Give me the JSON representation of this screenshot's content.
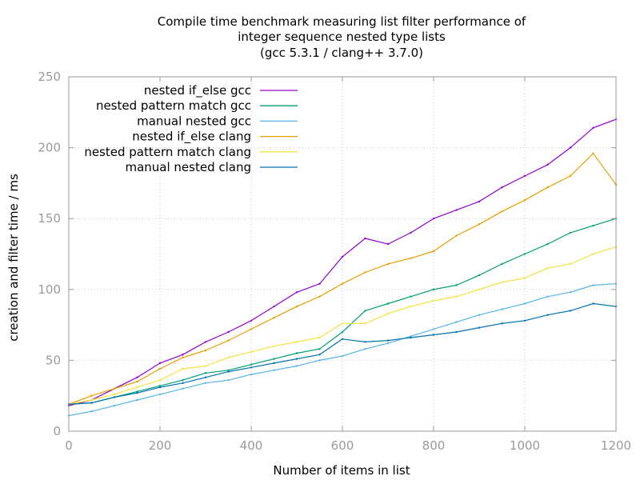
{
  "chart_data": {
    "type": "line",
    "title_lines": [
      "Compile time benchmark measuring list filter performance of",
      "integer sequence nested type lists",
      "(gcc 5.3.1 / clang++ 3.7.0)"
    ],
    "xlabel": "Number of items in list",
    "ylabel": "creation and filter time / ms",
    "xlim": [
      0,
      1200
    ],
    "ylim": [
      0,
      250
    ],
    "xticks": [
      0,
      200,
      400,
      600,
      800,
      1000,
      1200
    ],
    "yticks": [
      0,
      50,
      100,
      150,
      200,
      250
    ],
    "grid": true,
    "legend_position": "top-left",
    "x": [
      0,
      50,
      100,
      150,
      200,
      250,
      300,
      350,
      400,
      450,
      500,
      550,
      600,
      650,
      700,
      750,
      800,
      850,
      900,
      950,
      1000,
      1050,
      1100,
      1150,
      1200
    ],
    "series": [
      {
        "name": "nested if_else gcc",
        "color": "#9400d3",
        "values": [
          18,
          22,
          30,
          38,
          48,
          54,
          63,
          70,
          78,
          88,
          98,
          104,
          123,
          136,
          132,
          140,
          150,
          156,
          162,
          172,
          180,
          188,
          200,
          214,
          220
        ]
      },
      {
        "name": "nested pattern match gcc",
        "color": "#009e73",
        "values": [
          19,
          20,
          24,
          28,
          32,
          36,
          41,
          43,
          47,
          51,
          55,
          58,
          70,
          85,
          90,
          95,
          100,
          103,
          110,
          118,
          125,
          132,
          140,
          145,
          150
        ]
      },
      {
        "name": "manual nested gcc",
        "color": "#56b4e9",
        "values": [
          11,
          14,
          18,
          22,
          26,
          30,
          34,
          36,
          40,
          43,
          46,
          50,
          53,
          58,
          62,
          67,
          72,
          77,
          82,
          86,
          90,
          95,
          98,
          103,
          104
        ]
      },
      {
        "name": "nested if_else clang",
        "color": "#e69f00",
        "values": [
          19,
          25,
          30,
          35,
          44,
          52,
          57,
          64,
          72,
          80,
          88,
          95,
          104,
          112,
          118,
          122,
          127,
          138,
          146,
          155,
          163,
          172,
          180,
          196,
          174
        ]
      },
      {
        "name": "nested pattern match clang",
        "color": "#f0e442",
        "values": [
          19,
          22,
          26,
          31,
          36,
          44,
          46,
          52,
          56,
          60,
          63,
          66,
          76,
          76,
          83,
          88,
          92,
          95,
          100,
          105,
          108,
          115,
          118,
          125,
          130
        ]
      },
      {
        "name": "manual nested clang",
        "color": "#0072b2",
        "values": [
          19,
          20,
          24,
          27,
          31,
          34,
          38,
          42,
          45,
          48,
          51,
          54,
          65,
          63,
          64,
          66,
          68,
          70,
          73,
          76,
          78,
          82,
          85,
          90,
          88
        ]
      }
    ]
  }
}
